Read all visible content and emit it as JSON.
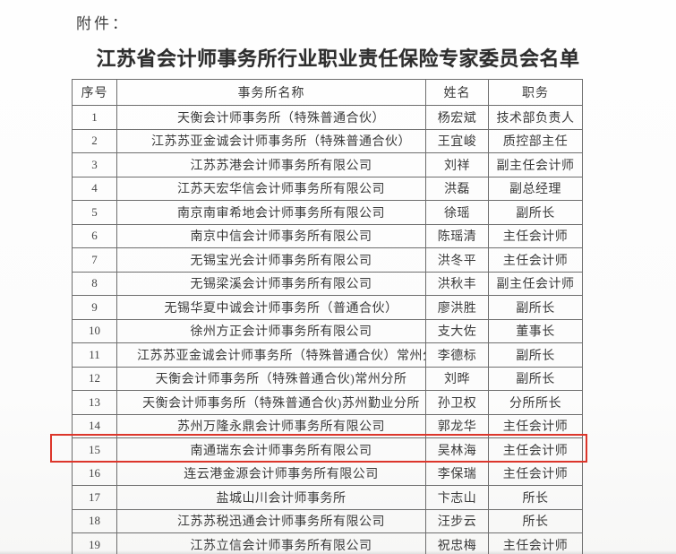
{
  "page": {
    "attachment_label": "附件：",
    "title": "江苏省会计师事务所行业职业责任保险专家委员会名单"
  },
  "table": {
    "columns": [
      "序号",
      "事务所名称",
      "姓名",
      "职务"
    ],
    "rows": [
      [
        "1",
        "天衡会计师事务所（特殊普通合伙）",
        "杨宏斌",
        "技术部负责人"
      ],
      [
        "2",
        "江苏苏亚金诚会计师事务所（特殊普通合伙）",
        "王宜峻",
        "质控部主任"
      ],
      [
        "3",
        "江苏苏港会计师事务所有限公司",
        "刘祥",
        "副主任会计师"
      ],
      [
        "4",
        "江苏天宏华信会计师事务所有限公司",
        "洪磊",
        "副总经理"
      ],
      [
        "5",
        "南京南审希地会计师事务所有限公司",
        "徐瑶",
        "副所长"
      ],
      [
        "6",
        "南京中信会计师事务所有限公司",
        "陈瑶清",
        "主任会计师"
      ],
      [
        "7",
        "无锡宝光会计师事务所有限公司",
        "洪冬平",
        "主任会计师"
      ],
      [
        "8",
        "无锡梁溪会计师事务所有限公司",
        "洪秋丰",
        "副主任会计师"
      ],
      [
        "9",
        "无锡华夏中诚会计师事务所（普通合伙）",
        "廖洪胜",
        "副所长"
      ],
      [
        "10",
        "徐州方正会计师事务所有限公司",
        "支大佐",
        "董事长"
      ],
      [
        "11",
        "江苏苏亚金诚会计师事务所（特殊普通合伙）常州分所",
        "李德标",
        "副所长"
      ],
      [
        "12",
        "天衡会计师事务所（特殊普通合伙)常州分所",
        "刘晔",
        "副所长"
      ],
      [
        "13",
        "天衡会计师事务所（特殊普通合伙)苏州勤业分所",
        "孙卫权",
        "分所所长"
      ],
      [
        "14",
        "苏州万隆永鼎会计师事务所有限公司",
        "郭龙华",
        "主任会计师"
      ],
      [
        "15",
        "南通瑞东会计师事务所有限公司",
        "吴林海",
        "主任会计师"
      ],
      [
        "16",
        "连云港金源会计师事务所有限公司",
        "李保瑞",
        "主任会计师"
      ],
      [
        "17",
        "盐城山川会计师事务所",
        "卞志山",
        "所长"
      ],
      [
        "18",
        "江苏苏税迅通会计师事务所有限公司",
        "汪步云",
        "所长"
      ],
      [
        "19",
        "江苏立信会计师事务所有限公司",
        "祝忠梅",
        "主任会计师"
      ]
    ]
  },
  "highlight": {
    "row_number": "15",
    "color": "#dc362b"
  },
  "colors": {
    "text": "#3b3b3b",
    "border": "#6e6e6e",
    "background": "#fdfdfd"
  }
}
